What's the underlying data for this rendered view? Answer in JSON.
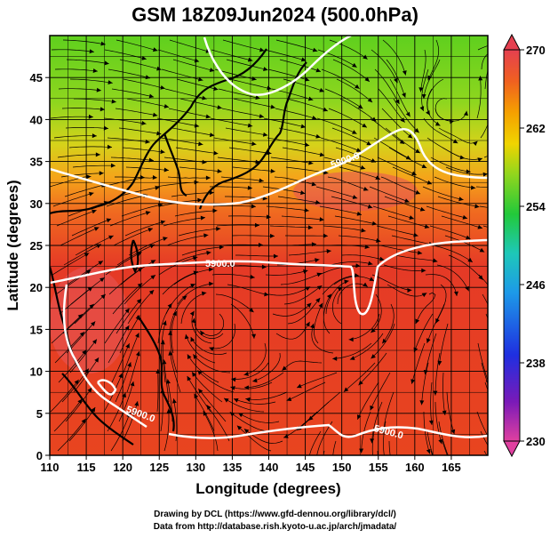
{
  "title": "GSM 18Z09Jun2024 (500.0hPa)",
  "credits": {
    "line1": "Drawing by DCL (https://www.gfd-dennou.org/library/dcl/)",
    "line2": "Data from http://database.rish.kyoto-u.ac.jp/arch/jmadata/"
  },
  "map": {
    "xlabel": "Longitude (degrees)",
    "ylabel": "Latitude  (degrees)",
    "xticks": [
      "110",
      "115",
      "120",
      "125",
      "130",
      "135",
      "140",
      "145",
      "150",
      "155",
      "160",
      "165"
    ],
    "yticks": [
      "0",
      "5",
      "10",
      "15",
      "20",
      "25",
      "30",
      "35",
      "40",
      "45"
    ],
    "xlim": [
      110,
      170
    ],
    "ylim": [
      0,
      50
    ],
    "grid": true,
    "contour_labels": [
      "5900.0",
      "5900.0",
      "5900.0",
      "5900.0"
    ],
    "colorbar": {
      "ticks": [
        "270",
        "262",
        "254",
        "246",
        "238",
        "230"
      ],
      "range": [
        230,
        270
      ],
      "colors": [
        "#e0409a",
        "#6a1bb8",
        "#1f2fe0",
        "#1d9ae8",
        "#1ec8b8",
        "#22c93a",
        "#8fd61e",
        "#f0d400",
        "#f5a000",
        "#f06020",
        "#e53020",
        "#e55060"
      ]
    }
  }
}
